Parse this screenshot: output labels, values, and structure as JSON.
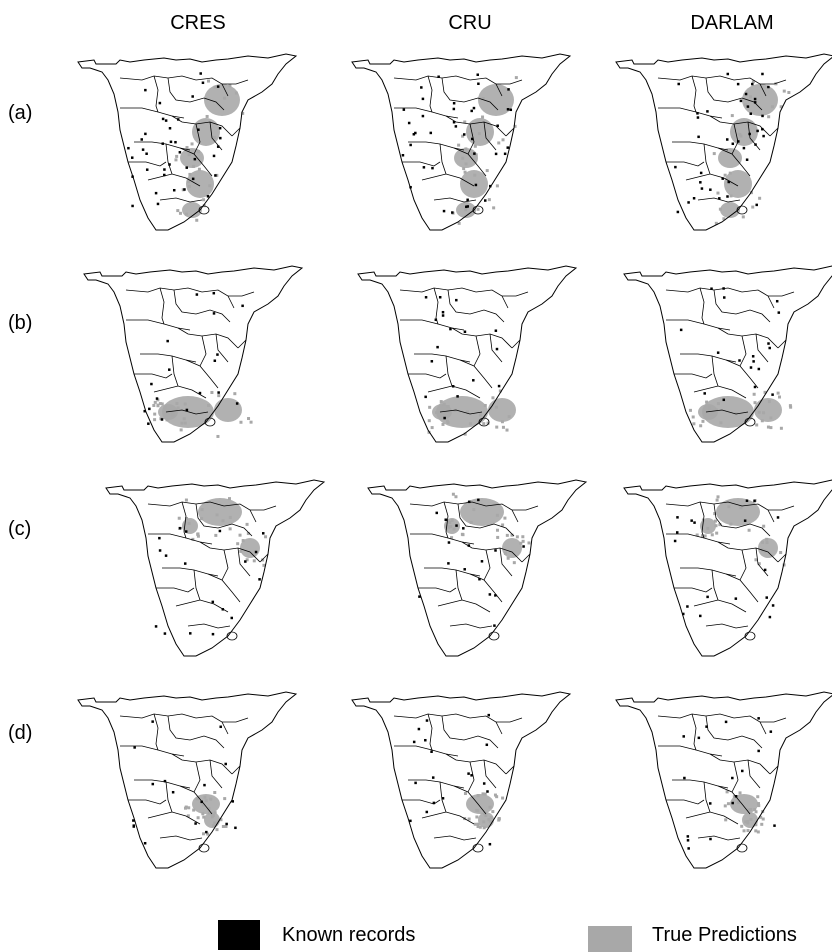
{
  "columns": [
    "CRES",
    "CRU",
    "DARLAM"
  ],
  "rows": [
    "(a)",
    "(b)",
    "(c)",
    "(d)"
  ],
  "legend": {
    "known_records": {
      "label": "Known records",
      "color": "#000000"
    },
    "true_predictions": {
      "label": "True Predictions",
      "color": "#a8a8a8"
    }
  },
  "colors": {
    "outline": "#000000",
    "background": "#ffffff",
    "prediction": "#a8a8a8",
    "record": "#000000"
  }
}
